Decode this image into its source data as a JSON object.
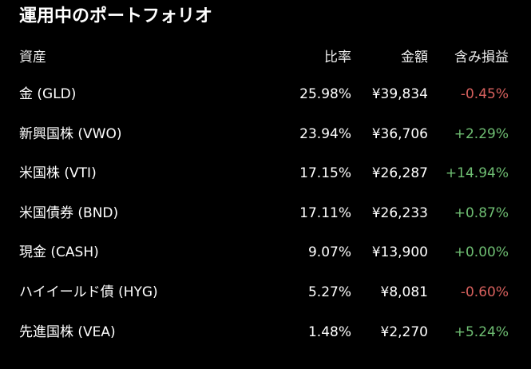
{
  "title": "運用中のポートフォリオ",
  "headers": {
    "asset": "資産",
    "ratio": "比率",
    "amount": "金額",
    "pnl": "含み損益"
  },
  "colors": {
    "negative": "#d9615e",
    "positive": "#6fbf73"
  },
  "rows": [
    {
      "asset": "金 (GLD)",
      "ratio": "25.98%",
      "amount": "¥39,834",
      "pnl": "-0.45%",
      "sign": "neg"
    },
    {
      "asset": "新興国株 (VWO)",
      "ratio": "23.94%",
      "amount": "¥36,706",
      "pnl": "+2.29%",
      "sign": "pos"
    },
    {
      "asset": "米国株 (VTI)",
      "ratio": "17.15%",
      "amount": "¥26,287",
      "pnl": "+14.94%",
      "sign": "pos"
    },
    {
      "asset": "米国債券 (BND)",
      "ratio": "17.11%",
      "amount": "¥26,233",
      "pnl": "+0.87%",
      "sign": "pos"
    },
    {
      "asset": "現金 (CASH)",
      "ratio": "9.07%",
      "amount": "¥13,900",
      "pnl": "+0.00%",
      "sign": "pos"
    },
    {
      "asset": "ハイイールド債 (HYG)",
      "ratio": "5.27%",
      "amount": "¥8,081",
      "pnl": "-0.60%",
      "sign": "neg"
    },
    {
      "asset": "先進国株 (VEA)",
      "ratio": "1.48%",
      "amount": "¥2,270",
      "pnl": "+5.24%",
      "sign": "pos"
    }
  ]
}
